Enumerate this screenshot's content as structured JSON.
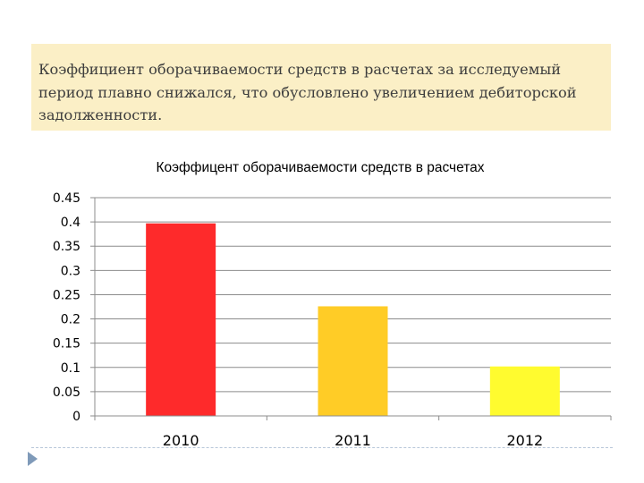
{
  "text_block": {
    "paragraph": "Коэффициент оборачиваемости средств в расчетах за исследуемый период плавно снижался, что обусловлено увеличением дебиторской задолженности."
  },
  "footer": {
    "icon": "triangle-bullet-icon"
  },
  "chart_data": {
    "type": "bar",
    "title": "Коэффицент оборачиваемости средств в расчетах",
    "categories": [
      "2010",
      "2011",
      "2012"
    ],
    "values": [
      0.397,
      0.226,
      0.102
    ],
    "bar_colors": [
      "#fe2a2b",
      "#ffcc26",
      "#fffb2f"
    ],
    "ylim": [
      0,
      0.45
    ],
    "yticks": [
      0,
      0.05,
      0.1,
      0.15,
      0.2,
      0.25,
      0.3,
      0.35,
      0.4,
      0.45
    ],
    "ytick_labels": [
      "0",
      "0.05",
      "0.1",
      "0.15",
      "0.2",
      "0.25",
      "0.3",
      "0.35",
      "0.4",
      "0.45"
    ],
    "xlabel": "",
    "ylabel": "",
    "grid": true,
    "legend": "none"
  }
}
